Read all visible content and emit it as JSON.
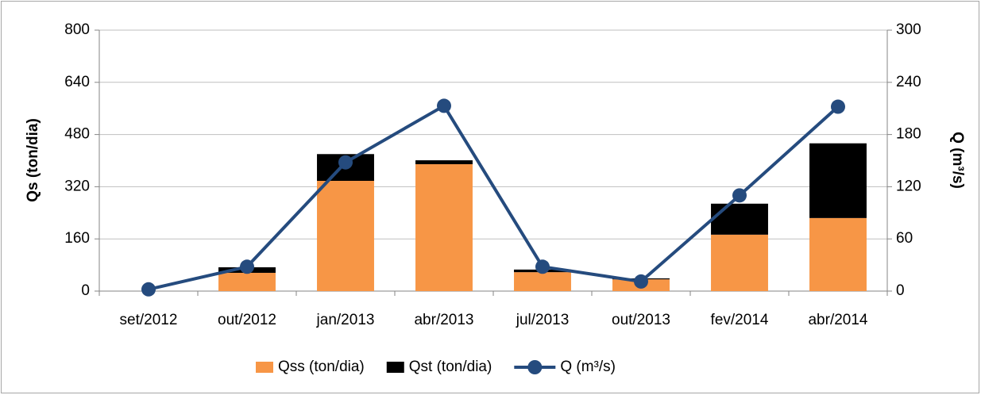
{
  "chart_data": {
    "type": "bar",
    "categories": [
      "set/2012",
      "out/2012",
      "jan/2013",
      "abr/2013",
      "jul/2013",
      "out/2013",
      "fev/2014",
      "abr/2014"
    ],
    "series": [
      {
        "name": "Qss (ton/dia)",
        "type": "bar",
        "color": "#f79646",
        "values": [
          0,
          56,
          338,
          389,
          58,
          36,
          173,
          224
        ]
      },
      {
        "name": "Qst (ton/dia)",
        "type": "bar",
        "color": "#000000",
        "values": [
          0,
          17,
          82,
          12,
          8,
          3,
          95,
          229
        ]
      },
      {
        "name": "Q (m³/s)",
        "type": "line",
        "axis": "y2",
        "color": "#254b7e",
        "values": [
          2,
          28,
          148,
          213,
          28,
          11,
          110,
          212
        ]
      }
    ],
    "ylabel": "Qs (ton/dia)",
    "y2label": "Q (m³/s)",
    "ylim": [
      0,
      800
    ],
    "yticks": [
      0,
      160,
      320,
      480,
      640,
      800
    ],
    "y2lim": [
      0,
      300
    ],
    "y2ticks": [
      0,
      60,
      120,
      180,
      240,
      300
    ],
    "grid": true,
    "legend": "bottom"
  }
}
